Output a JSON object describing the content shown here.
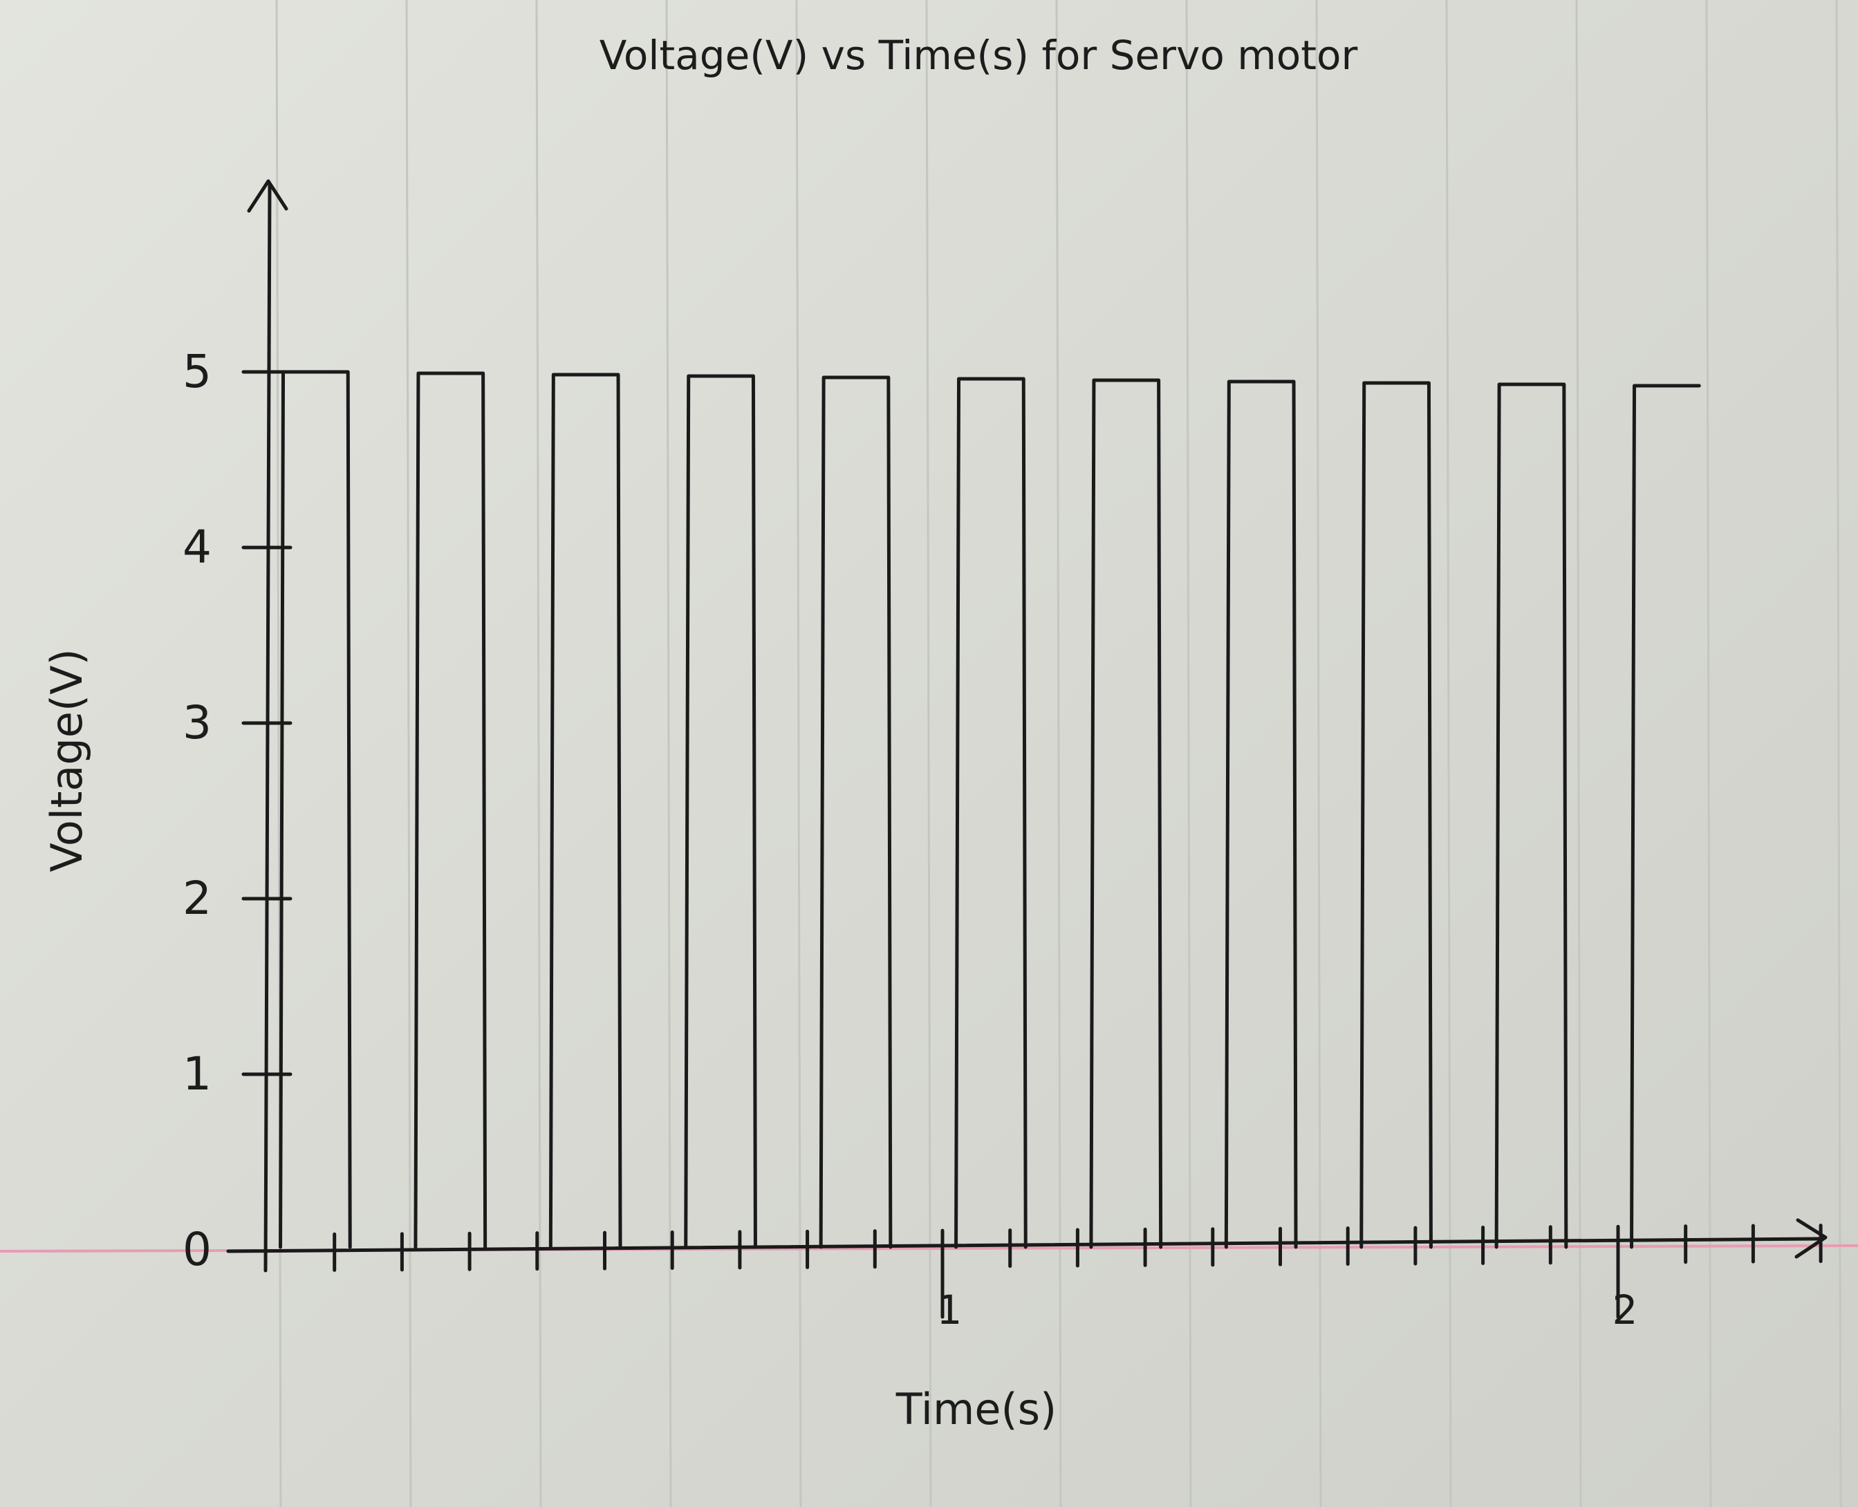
{
  "chart_data": {
    "type": "line",
    "title": "Voltage(V) vs Time(s) for Servo motor",
    "xlabel": "Time(s)",
    "ylabel": "Voltage(V)",
    "xlim": [
      0,
      2.4
    ],
    "ylim": [
      0,
      5
    ],
    "x_ticks": [
      {
        "value": 1,
        "label": "1"
      },
      {
        "value": 2,
        "label": "2"
      }
    ],
    "y_ticks": [
      {
        "value": 0,
        "label": "0"
      },
      {
        "value": 1,
        "label": "1"
      },
      {
        "value": 2,
        "label": "2"
      },
      {
        "value": 3,
        "label": "3"
      },
      {
        "value": 4,
        "label": "4"
      },
      {
        "value": 5,
        "label": "5"
      }
    ],
    "grid": false,
    "series": [
      {
        "pulse_high_voltage": 5,
        "pulse_low_voltage": 0,
        "pulses": [
          {
            "start": 0.02,
            "end": 0.12
          },
          {
            "start": 0.22,
            "end": 0.32
          },
          {
            "start": 0.42,
            "end": 0.52
          },
          {
            "start": 0.62,
            "end": 0.72
          },
          {
            "start": 0.82,
            "end": 0.92
          },
          {
            "start": 1.02,
            "end": 1.12
          },
          {
            "start": 1.22,
            "end": 1.32
          },
          {
            "start": 1.42,
            "end": 1.52
          },
          {
            "start": 1.62,
            "end": 1.72
          },
          {
            "start": 1.82,
            "end": 1.92
          },
          {
            "start": 2.02,
            "end": 2.12
          }
        ]
      }
    ]
  }
}
